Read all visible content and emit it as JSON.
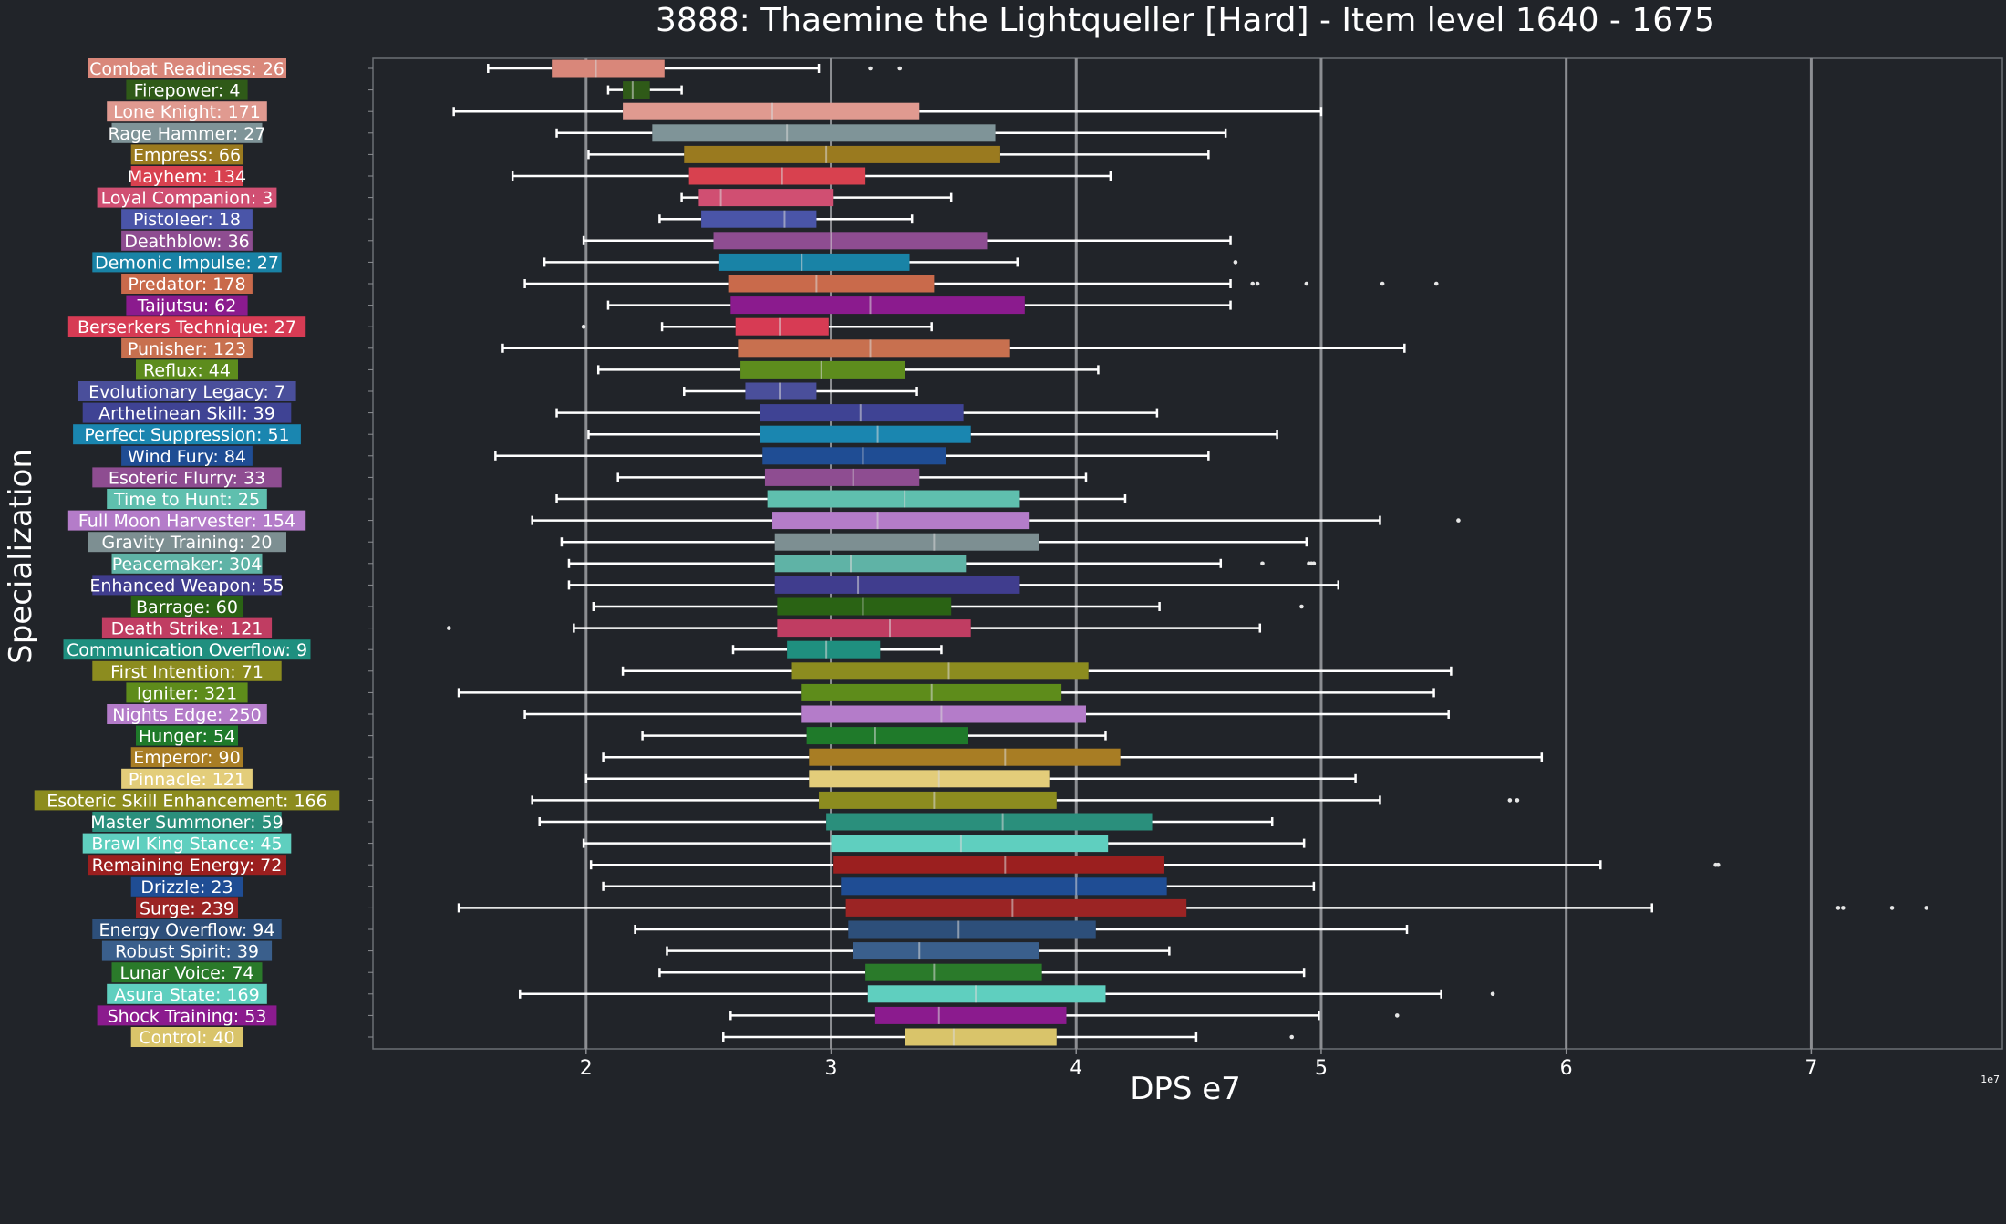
{
  "chart_data": {
    "type": "box",
    "title": "3888: Thaemine the Lightqueller [Hard] - Item level 1640 - 1675",
    "xlabel": "DPS e7",
    "ylabel": "Specialization",
    "x_exponent_label": "1e7",
    "xlim": [
      1.13,
      7.78
    ],
    "xticks": [
      2,
      3,
      4,
      5,
      6,
      7
    ],
    "grid": "vertical",
    "categories": [
      {
        "label": "Combat Readiness: 26",
        "color": "#d9877a",
        "min": 1.6,
        "q1": 1.86,
        "median": 2.04,
        "q3": 2.32,
        "max": 2.95,
        "outliers": [
          3.16,
          3.28
        ]
      },
      {
        "label": "Firepower: 4",
        "color": "#2f5a18",
        "min": 2.09,
        "q1": 2.15,
        "median": 2.19,
        "q3": 2.26,
        "max": 2.39,
        "outliers": []
      },
      {
        "label": "Lone Knight: 171",
        "color": "#e09a90",
        "min": 1.46,
        "q1": 2.15,
        "median": 2.76,
        "q3": 3.36,
        "max": 5.0,
        "outliers": []
      },
      {
        "label": "Rage Hammer: 27",
        "color": "#7f9498",
        "min": 1.88,
        "q1": 2.27,
        "median": 2.82,
        "q3": 3.67,
        "max": 4.61,
        "outliers": []
      },
      {
        "label": "Empress: 66",
        "color": "#9a7a1f",
        "min": 2.01,
        "q1": 2.4,
        "median": 2.98,
        "q3": 3.69,
        "max": 4.54,
        "outliers": []
      },
      {
        "label": "Mayhem: 134",
        "color": "#d8414f",
        "min": 1.7,
        "q1": 2.42,
        "median": 2.8,
        "q3": 3.14,
        "max": 4.14,
        "outliers": []
      },
      {
        "label": "Loyal Companion: 3",
        "color": "#d04f72",
        "min": 2.39,
        "q1": 2.46,
        "median": 2.55,
        "q3": 3.01,
        "max": 3.49,
        "outliers": []
      },
      {
        "label": "Pistoleer: 18",
        "color": "#4a55a8",
        "min": 2.3,
        "q1": 2.47,
        "median": 2.81,
        "q3": 2.94,
        "max": 3.33,
        "outliers": []
      },
      {
        "label": "Deathblow: 36",
        "color": "#8e4d91",
        "min": 1.99,
        "q1": 2.52,
        "median": 3.0,
        "q3": 3.64,
        "max": 4.63,
        "outliers": []
      },
      {
        "label": "Demonic Impulse: 27",
        "color": "#1983a6",
        "min": 1.83,
        "q1": 2.54,
        "median": 2.88,
        "q3": 3.32,
        "max": 3.76,
        "outliers": [
          4.65
        ]
      },
      {
        "label": "Predator: 178",
        "color": "#c96a4b",
        "min": 1.75,
        "q1": 2.58,
        "median": 2.94,
        "q3": 3.42,
        "max": 4.63,
        "outliers": [
          4.72,
          4.74,
          4.94,
          5.25,
          5.47
        ]
      },
      {
        "label": "Taijutsu: 62",
        "color": "#8b1b8e",
        "min": 2.09,
        "q1": 2.59,
        "median": 3.16,
        "q3": 3.79,
        "max": 4.63,
        "outliers": []
      },
      {
        "label": "Berserkers Technique: 27",
        "color": "#d73b54",
        "min": 2.31,
        "q1": 2.61,
        "median": 2.79,
        "q3": 2.99,
        "max": 3.41,
        "outliers": [
          1.99
        ]
      },
      {
        "label": "Punisher: 123",
        "color": "#c8704f",
        "min": 1.66,
        "q1": 2.62,
        "median": 3.16,
        "q3": 3.73,
        "max": 5.34,
        "outliers": []
      },
      {
        "label": "Reflux: 44",
        "color": "#5d8c1d",
        "min": 2.05,
        "q1": 2.63,
        "median": 2.96,
        "q3": 3.3,
        "max": 4.09,
        "outliers": []
      },
      {
        "label": "Evolutionary Legacy: 7",
        "color": "#4a4f9b",
        "min": 2.4,
        "q1": 2.65,
        "median": 2.79,
        "q3": 2.94,
        "max": 3.35,
        "outliers": []
      },
      {
        "label": "Arthetinean Skill: 39",
        "color": "#3f4394",
        "min": 1.88,
        "q1": 2.71,
        "median": 3.12,
        "q3": 3.54,
        "max": 4.33,
        "outliers": []
      },
      {
        "label": "Perfect Suppression: 51",
        "color": "#1a86b0",
        "min": 2.01,
        "q1": 2.71,
        "median": 3.19,
        "q3": 3.57,
        "max": 4.82,
        "outliers": []
      },
      {
        "label": "Wind Fury: 84",
        "color": "#1f4d94",
        "min": 1.63,
        "q1": 2.72,
        "median": 3.13,
        "q3": 3.47,
        "max": 4.54,
        "outliers": []
      },
      {
        "label": "Esoteric Flurry: 33",
        "color": "#8e4d91",
        "min": 2.13,
        "q1": 2.73,
        "median": 3.09,
        "q3": 3.36,
        "max": 4.04,
        "outliers": []
      },
      {
        "label": "Time to Hunt: 25",
        "color": "#5fbfae",
        "min": 1.88,
        "q1": 2.74,
        "median": 3.3,
        "q3": 3.77,
        "max": 4.2,
        "outliers": []
      },
      {
        "label": "Full Moon Harvester: 154",
        "color": "#b47cc9",
        "min": 1.78,
        "q1": 2.76,
        "median": 3.19,
        "q3": 3.81,
        "max": 5.24,
        "outliers": [
          5.56
        ]
      },
      {
        "label": "Gravity Training: 20",
        "color": "#7d8f92",
        "min": 1.9,
        "q1": 2.77,
        "median": 3.42,
        "q3": 3.85,
        "max": 4.94,
        "outliers": []
      },
      {
        "label": "Peacemaker: 304",
        "color": "#5fb3a6",
        "min": 1.93,
        "q1": 2.77,
        "median": 3.08,
        "q3": 3.55,
        "max": 4.59,
        "outliers": [
          4.76,
          4.95,
          4.96,
          4.97
        ]
      },
      {
        "label": "Enhanced Weapon: 55",
        "color": "#403d8e",
        "min": 1.93,
        "q1": 2.77,
        "median": 3.11,
        "q3": 3.77,
        "max": 5.07,
        "outliers": []
      },
      {
        "label": "Barrage: 60",
        "color": "#2a6314",
        "min": 2.03,
        "q1": 2.78,
        "median": 3.13,
        "q3": 3.49,
        "max": 4.34,
        "outliers": [
          4.92
        ]
      },
      {
        "label": "Death Strike: 121",
        "color": "#c03d62",
        "min": 1.95,
        "q1": 2.78,
        "median": 3.24,
        "q3": 3.57,
        "max": 4.75,
        "outliers": [
          1.44
        ]
      },
      {
        "label": "Communication Overflow: 9",
        "color": "#1f8f7f",
        "min": 2.6,
        "q1": 2.82,
        "median": 2.98,
        "q3": 3.2,
        "max": 3.45,
        "outliers": []
      },
      {
        "label": "First Intention: 71",
        "color": "#8c8c1f",
        "min": 2.15,
        "q1": 2.84,
        "median": 3.48,
        "q3": 4.05,
        "max": 5.53,
        "outliers": []
      },
      {
        "label": "Igniter: 321",
        "color": "#5e8c1b",
        "min": 1.48,
        "q1": 2.88,
        "median": 3.41,
        "q3": 3.94,
        "max": 5.46,
        "outliers": []
      },
      {
        "label": "Nights Edge: 250",
        "color": "#b47cc9",
        "min": 1.75,
        "q1": 2.88,
        "median": 3.45,
        "q3": 4.04,
        "max": 5.52,
        "outliers": []
      },
      {
        "label": "Hunger: 54",
        "color": "#1f7a2a",
        "min": 2.23,
        "q1": 2.9,
        "median": 3.18,
        "q3": 3.56,
        "max": 4.12,
        "outliers": []
      },
      {
        "label": "Emperor: 90",
        "color": "#a87d24",
        "min": 2.07,
        "q1": 2.91,
        "median": 3.71,
        "q3": 4.18,
        "max": 5.9,
        "outliers": []
      },
      {
        "label": "Pinnacle: 121",
        "color": "#e3cd7a",
        "min": 2.0,
        "q1": 2.91,
        "median": 3.44,
        "q3": 3.89,
        "max": 5.14,
        "outliers": []
      },
      {
        "label": "Esoteric Skill Enhancement: 166",
        "color": "#8c8c1f",
        "min": 1.78,
        "q1": 2.95,
        "median": 3.42,
        "q3": 3.92,
        "max": 5.24,
        "outliers": [
          5.77,
          5.8
        ]
      },
      {
        "label": "Master Summoner: 59",
        "color": "#2a8f7c",
        "min": 1.81,
        "q1": 2.98,
        "median": 3.7,
        "q3": 4.31,
        "max": 4.8,
        "outliers": []
      },
      {
        "label": "Brawl King Stance: 45",
        "color": "#5fcfbf",
        "min": 1.99,
        "q1": 3.0,
        "median": 3.53,
        "q3": 4.13,
        "max": 4.93,
        "outliers": []
      },
      {
        "label": "Remaining Energy: 72",
        "color": "#9b1f1f",
        "min": 2.02,
        "q1": 3.01,
        "median": 3.71,
        "q3": 4.36,
        "max": 6.14,
        "outliers": [
          6.61,
          6.62
        ]
      },
      {
        "label": "Drizzle: 23",
        "color": "#1f4d94",
        "min": 2.07,
        "q1": 3.04,
        "median": 4.0,
        "q3": 4.37,
        "max": 4.97,
        "outliers": []
      },
      {
        "label": "Surge: 239",
        "color": "#9b2424",
        "min": 1.48,
        "q1": 3.06,
        "median": 3.74,
        "q3": 4.45,
        "max": 6.35,
        "outliers": [
          7.11,
          7.13,
          7.33,
          7.47
        ]
      },
      {
        "label": "Energy Overflow: 94",
        "color": "#2d4f7a",
        "min": 2.2,
        "q1": 3.07,
        "median": 3.52,
        "q3": 4.08,
        "max": 5.35,
        "outliers": []
      },
      {
        "label": "Robust Spirit: 39",
        "color": "#3a5f8c",
        "min": 2.33,
        "q1": 3.09,
        "median": 3.36,
        "q3": 3.85,
        "max": 4.38,
        "outliers": []
      },
      {
        "label": "Lunar Voice: 74",
        "color": "#2a7a2a",
        "min": 2.3,
        "q1": 3.14,
        "median": 3.42,
        "q3": 3.86,
        "max": 4.93,
        "outliers": []
      },
      {
        "label": "Asura State: 169",
        "color": "#5fcfbf",
        "min": 1.73,
        "q1": 3.15,
        "median": 3.59,
        "q3": 4.12,
        "max": 5.49,
        "outliers": [
          5.7
        ]
      },
      {
        "label": "Shock Training: 53",
        "color": "#8b1b8e",
        "min": 2.59,
        "q1": 3.18,
        "median": 3.44,
        "q3": 3.96,
        "max": 4.99,
        "outliers": [
          5.31
        ]
      },
      {
        "label": "Control: 40",
        "color": "#d9c46a",
        "min": 2.56,
        "q1": 3.3,
        "median": 3.5,
        "q3": 3.92,
        "max": 4.49,
        "outliers": [
          4.88
        ]
      }
    ]
  }
}
